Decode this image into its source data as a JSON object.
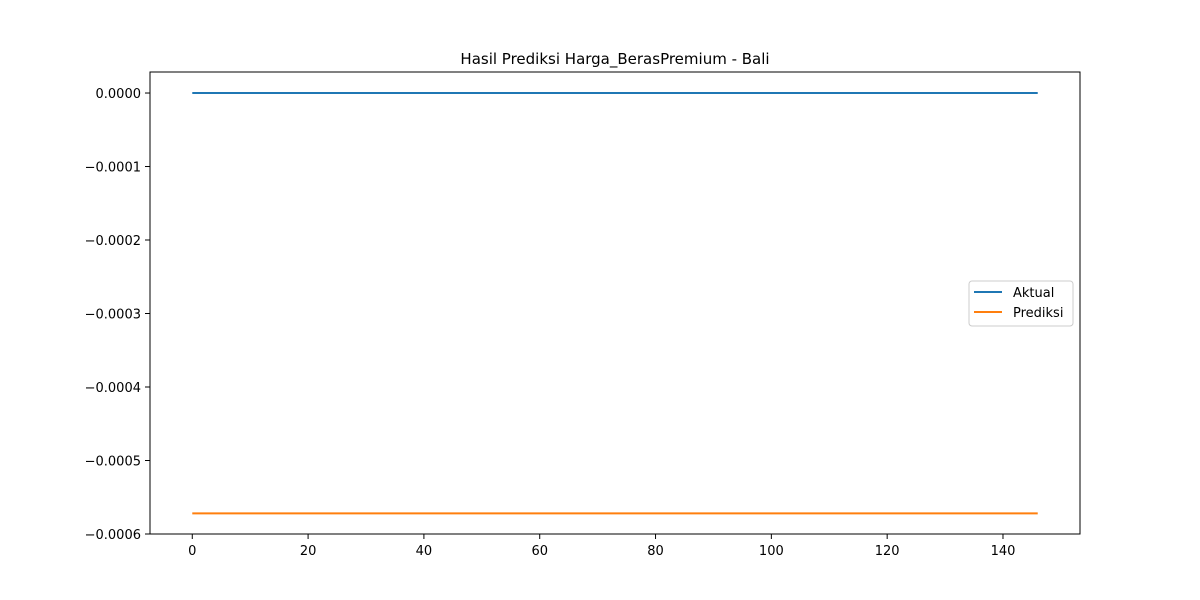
{
  "chart_data": {
    "type": "line",
    "title": "Hasil Prediksi Harga_BerasPremium - Bali",
    "xlabel": "",
    "ylabel": "",
    "xlim": [
      -7.3,
      153.3
    ],
    "ylim": [
      -0.0006,
      2.86e-05
    ],
    "grid": false,
    "legend_position": "center-right",
    "x_ticks": [
      0,
      20,
      40,
      60,
      80,
      100,
      120,
      140
    ],
    "x_tick_labels": [
      "0",
      "20",
      "40",
      "60",
      "80",
      "100",
      "120",
      "140"
    ],
    "y_ticks": [
      0,
      -0.0001,
      -0.0002,
      -0.0003,
      -0.0004,
      -0.0005,
      -0.0006
    ],
    "y_tick_labels": [
      "0.0000",
      "−0.0001",
      "−0.0002",
      "−0.0003",
      "−0.0004",
      "−0.0005",
      "−0.0006"
    ],
    "x_range": [
      0,
      146
    ],
    "series": [
      {
        "name": "Aktual",
        "color": "#1f77b4",
        "x": [
          0,
          146
        ],
        "values": [
          0.0,
          0.0
        ]
      },
      {
        "name": "Prediksi",
        "color": "#ff7f0e",
        "x": [
          0,
          146
        ],
        "values": [
          -0.000572,
          -0.000572
        ]
      }
    ]
  }
}
